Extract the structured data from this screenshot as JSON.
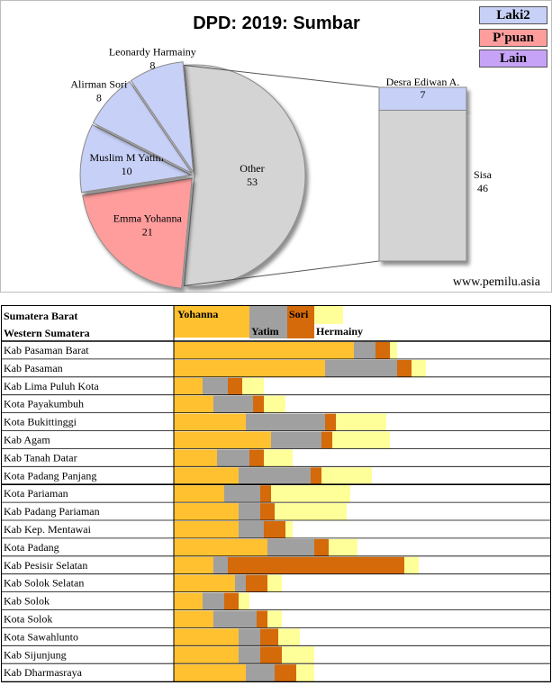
{
  "chart_data": [
    {
      "type": "pie",
      "title": "DPD: 2019: Sumbar",
      "watermark": "www.pemilu.asia",
      "legend": [
        {
          "label": "Laki2",
          "color": "#c7d0f7"
        },
        {
          "label": "P'puan",
          "color": "#ff9d9d"
        },
        {
          "label": "Lain",
          "color": "#c7a3f7"
        }
      ],
      "slices": [
        {
          "label": "Other",
          "value": 53,
          "color": "#d4d4d4"
        },
        {
          "label": "Emma Yohanna",
          "value": 21,
          "color": "#ff9d9d"
        },
        {
          "label": "Muslim M Yatim",
          "value": 10,
          "color": "#c7d0f7"
        },
        {
          "label": "Alirman Sori",
          "value": 8,
          "color": "#c7d0f7"
        },
        {
          "label": "Leonardy Harmainy",
          "value": 8,
          "color": "#c7d0f7"
        }
      ],
      "breakout": [
        {
          "label": "Desra Ediwan A.",
          "value": 7,
          "color": "#c7d0f7"
        },
        {
          "label": "Sisa",
          "value": 46,
          "color": "#d4d4d4"
        }
      ]
    },
    {
      "type": "bar",
      "stacked": true,
      "orientation": "horizontal",
      "header": {
        "line1": "Sumatera Barat",
        "line2": "Western Sumatera"
      },
      "series": [
        {
          "name": "Yohanna",
          "color": "#ffc12f"
        },
        {
          "name": "Yatim",
          "color": "#a0a0a0"
        },
        {
          "name": "Sori",
          "color": "#d46a0a"
        },
        {
          "name": "Hermainy",
          "color": "#ffff99"
        }
      ],
      "categories": [
        "Kab Pasaman Barat",
        "Kab Pasaman",
        "Kab Lima Puluh Kota",
        "Kota Payakumbuh",
        "Kota Bukittinggi",
        "Kab Agam",
        "Kab Tanah Datar",
        "Kota Padang Panjang",
        "Kota Pariaman",
        "Kab Padang Pariaman",
        "Kab Kep. Mentawai",
        "Kota Padang",
        "Kab Pesisir Selatan",
        "Kab Solok Selatan",
        "Kab Solok",
        "Kota Solok",
        "Kota Sawahlunto",
        "Kab Sijunjung",
        "Kab Dharmasraya"
      ],
      "values": [
        [
          50,
          6,
          4,
          2
        ],
        [
          42,
          20,
          4,
          4
        ],
        [
          8,
          7,
          4,
          6
        ],
        [
          11,
          11,
          3,
          6
        ],
        [
          20,
          22,
          3,
          14
        ],
        [
          27,
          14,
          3,
          16
        ],
        [
          12,
          9,
          4,
          8
        ],
        [
          18,
          20,
          3,
          14
        ],
        [
          14,
          10,
          3,
          22
        ],
        [
          18,
          6,
          4,
          20
        ],
        [
          18,
          7,
          6,
          2
        ],
        [
          26,
          13,
          4,
          8
        ],
        [
          11,
          4,
          49,
          4
        ],
        [
          17,
          3,
          6,
          4
        ],
        [
          8,
          6,
          4,
          3
        ],
        [
          11,
          12,
          3,
          4
        ],
        [
          18,
          6,
          5,
          6
        ],
        [
          18,
          6,
          6,
          9
        ],
        [
          20,
          8,
          6,
          5
        ]
      ]
    }
  ]
}
